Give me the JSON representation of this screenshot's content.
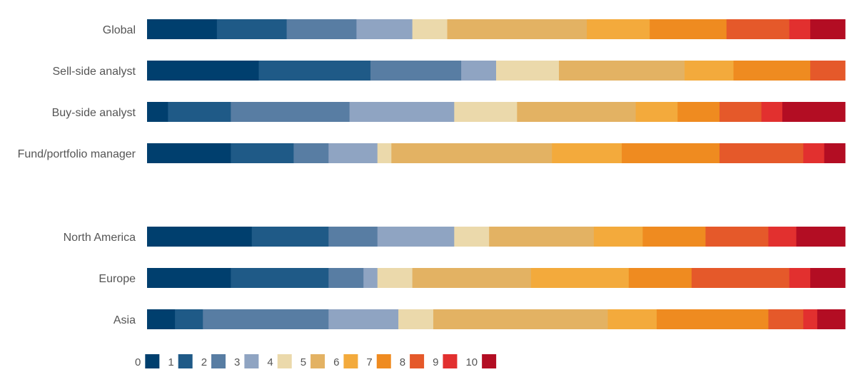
{
  "chart_data": {
    "type": "bar",
    "stacked": true,
    "orientation": "horizontal",
    "xlim": [
      0,
      100
    ],
    "grid": false,
    "legend_placement": "bottom-left",
    "legend": [
      "0",
      "1",
      "2",
      "3",
      "4",
      "5",
      "6",
      "7",
      "8",
      "9",
      "10"
    ],
    "colors": [
      "#003f6e",
      "#1f5a87",
      "#587da3",
      "#8fa4c2",
      "#ebd9ab",
      "#e3b263",
      "#f3aa3c",
      "#ef8b20",
      "#e5592a",
      "#e2302f",
      "#b30d23"
    ],
    "groups": [
      {
        "categories": [
          "Global",
          "Sell-side analyst",
          "Buy-side analyst",
          "Fund/portfolio manager"
        ],
        "rows": [
          [
            10,
            10,
            10,
            8,
            5,
            20,
            9,
            11,
            9,
            3,
            5
          ],
          [
            16,
            16,
            13,
            5,
            9,
            18,
            7,
            11,
            5,
            0,
            0
          ],
          [
            3,
            9,
            17,
            15,
            9,
            17,
            6,
            6,
            6,
            3,
            9
          ],
          [
            12,
            9,
            5,
            7,
            2,
            23,
            10,
            14,
            12,
            3,
            3
          ]
        ]
      },
      {
        "categories": [
          "North America",
          "Europe",
          "Asia"
        ],
        "rows": [
          [
            15,
            11,
            7,
            11,
            5,
            15,
            7,
            9,
            9,
            4,
            7
          ],
          [
            12,
            14,
            5,
            2,
            5,
            17,
            14,
            9,
            14,
            3,
            5
          ],
          [
            4,
            4,
            18,
            10,
            5,
            25,
            7,
            16,
            5,
            2,
            4
          ]
        ]
      }
    ]
  }
}
